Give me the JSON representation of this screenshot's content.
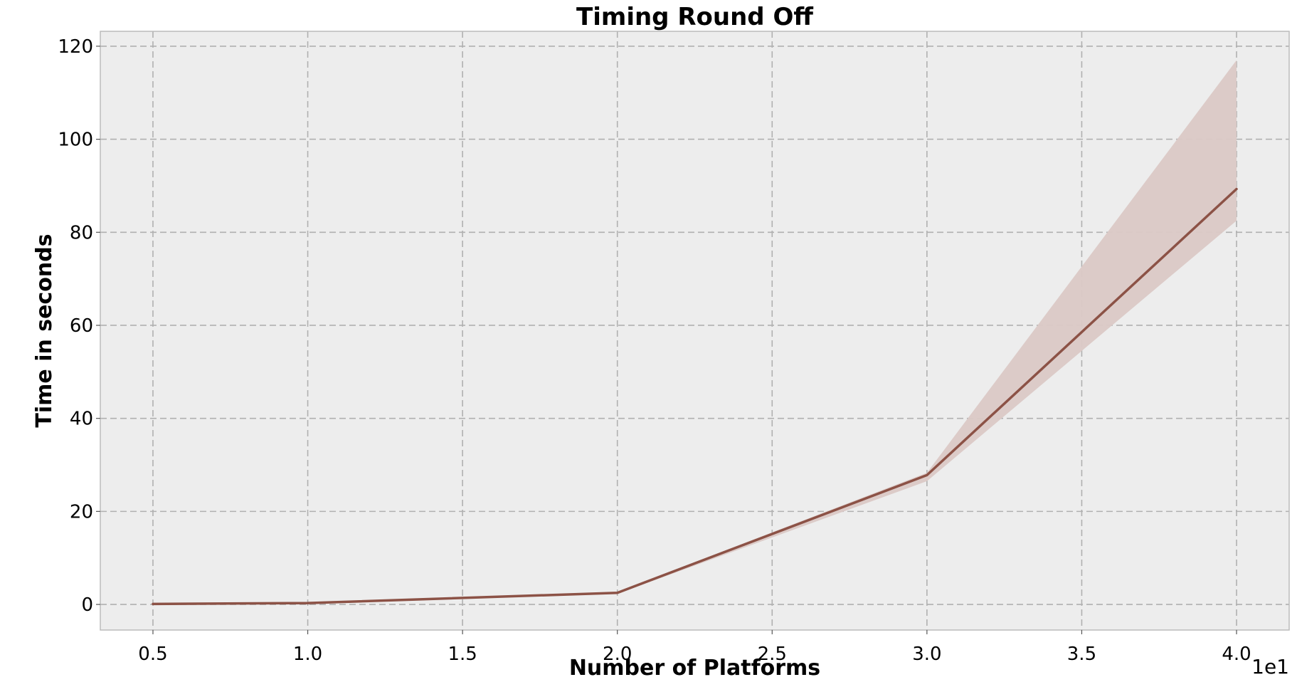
{
  "chart_data": {
    "type": "line",
    "title": "Timing Round Off",
    "xlabel": "Number of Platforms",
    "ylabel": "Time in seconds",
    "x_offset_label": "1e1",
    "xlim": [
      0.33,
      4.17
    ],
    "ylim": [
      -5.5,
      123.2
    ],
    "x_ticks": [
      0.5,
      1.0,
      1.5,
      2.0,
      2.5,
      3.0,
      3.5,
      4.0
    ],
    "x_tick_labels": [
      "0.5",
      "1.0",
      "1.5",
      "2.0",
      "2.5",
      "3.0",
      "3.5",
      "4.0"
    ],
    "y_ticks": [
      0,
      20,
      40,
      60,
      80,
      100,
      120
    ],
    "y_tick_labels": [
      "0",
      "20",
      "40",
      "60",
      "80",
      "100",
      "120"
    ],
    "grid": true,
    "legend": "none",
    "series": [
      {
        "x": [
          0.5,
          1.0,
          2.0,
          3.0,
          4.0
        ],
        "y": [
          0.1,
          0.3,
          2.5,
          27.8,
          89.3
        ],
        "band_lower": [
          0.0,
          0.2,
          2.3,
          26.5,
          82.5
        ],
        "band_upper": [
          0.2,
          0.4,
          2.7,
          28.3,
          117.0
        ],
        "color": "#8c5246",
        "band_color": "#dbc9c6"
      }
    ],
    "colors": {
      "plot_background": "#ededed",
      "grid": "#b0b0b0",
      "frame": "#bcbcbc"
    }
  }
}
